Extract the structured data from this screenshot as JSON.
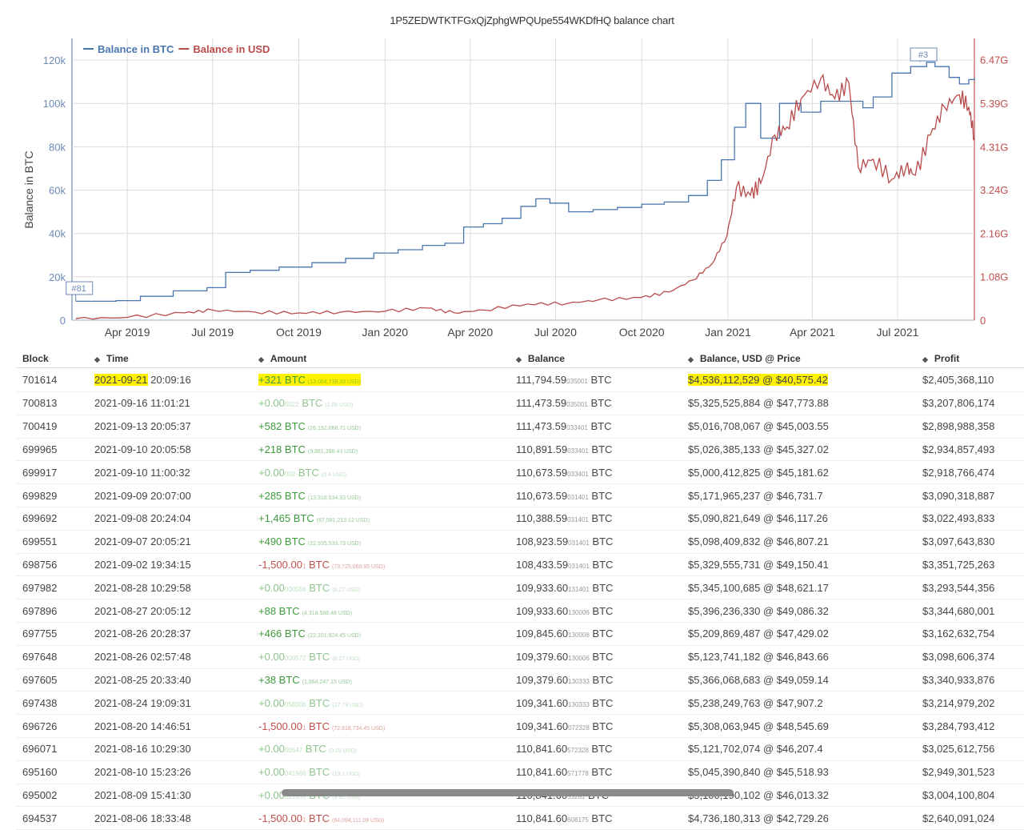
{
  "chart_data": {
    "type": "line",
    "title": "1P5ZEDWTKTFGxQjZphgWPQUpe554WKDfHQ balance chart",
    "ylabel": "Balance in BTC",
    "ylim": [
      0,
      130000
    ],
    "y2lim": [
      0,
      7000000000
    ],
    "yticks": [
      "0",
      "20k",
      "40k",
      "60k",
      "80k",
      "100k",
      "120k"
    ],
    "y2ticks": [
      "0",
      "1.08G",
      "2.16G",
      "3.24G",
      "4.31G",
      "5.39G",
      "6.47G"
    ],
    "xticks": [
      "Apr 2019",
      "Jul 2019",
      "Oct 2019",
      "Jan 2020",
      "Apr 2020",
      "Jul 2020",
      "Oct 2020",
      "Jan 2021",
      "Apr 2021",
      "Jul 2021"
    ],
    "xrange": [
      "2019-02-01",
      "2021-09-21"
    ],
    "legend_position": "top-left",
    "grid": true,
    "series": [
      {
        "name": "Balance in BTC",
        "color": "#4a76b0",
        "axis": "left",
        "points": [
          [
            "2019-02-05",
            8700
          ],
          [
            "2019-03-20",
            9000
          ],
          [
            "2019-04-15",
            11000
          ],
          [
            "2019-05-20",
            13500
          ],
          [
            "2019-06-25",
            15000
          ],
          [
            "2019-07-15",
            22000
          ],
          [
            "2019-08-10",
            23000
          ],
          [
            "2019-09-10",
            24500
          ],
          [
            "2019-10-15",
            26500
          ],
          [
            "2019-11-20",
            28500
          ],
          [
            "2019-12-20",
            31000
          ],
          [
            "2020-01-15",
            32500
          ],
          [
            "2020-02-10",
            34500
          ],
          [
            "2020-03-05",
            35500
          ],
          [
            "2020-03-25",
            43000
          ],
          [
            "2020-04-15",
            44500
          ],
          [
            "2020-05-05",
            47000
          ],
          [
            "2020-05-25",
            52500
          ],
          [
            "2020-06-10",
            56000
          ],
          [
            "2020-06-25",
            54000
          ],
          [
            "2020-07-15",
            50000
          ],
          [
            "2020-08-10",
            51000
          ],
          [
            "2020-09-05",
            52000
          ],
          [
            "2020-10-01",
            53500
          ],
          [
            "2020-10-25",
            54500
          ],
          [
            "2020-11-20",
            57500
          ],
          [
            "2020-12-10",
            64500
          ],
          [
            "2020-12-25",
            74000
          ],
          [
            "2021-01-08",
            89000
          ],
          [
            "2021-01-20",
            100000
          ],
          [
            "2021-02-05",
            84000
          ],
          [
            "2021-02-25",
            100000
          ],
          [
            "2021-03-20",
            96000
          ],
          [
            "2021-04-10",
            101000
          ],
          [
            "2021-05-10",
            101000
          ],
          [
            "2021-05-25",
            98000
          ],
          [
            "2021-06-05",
            103000
          ],
          [
            "2021-06-25",
            114000
          ],
          [
            "2021-07-15",
            117000
          ],
          [
            "2021-08-01",
            119000
          ],
          [
            "2021-08-10",
            117000
          ],
          [
            "2021-08-25",
            112000
          ],
          [
            "2021-09-05",
            109000
          ],
          [
            "2021-09-15",
            111000
          ],
          [
            "2021-09-21",
            111795
          ]
        ]
      },
      {
        "name": "Balance in USD",
        "color": "#b84b4b",
        "axis": "right",
        "points": [
          [
            "2019-02-05",
            35000000
          ],
          [
            "2019-04-01",
            70000000
          ],
          [
            "2019-06-01",
            180000000
          ],
          [
            "2019-07-01",
            250000000
          ],
          [
            "2019-08-15",
            200000000
          ],
          [
            "2019-10-01",
            180000000
          ],
          [
            "2019-11-15",
            200000000
          ],
          [
            "2020-01-01",
            220000000
          ],
          [
            "2020-02-15",
            300000000
          ],
          [
            "2020-03-15",
            180000000
          ],
          [
            "2020-04-15",
            250000000
          ],
          [
            "2020-06-01",
            400000000
          ],
          [
            "2020-07-15",
            420000000
          ],
          [
            "2020-08-15",
            500000000
          ],
          [
            "2020-09-30",
            560000000
          ],
          [
            "2020-10-30",
            700000000
          ],
          [
            "2020-11-25",
            1000000000
          ],
          [
            "2020-12-15",
            1400000000
          ],
          [
            "2020-12-31",
            2100000000
          ],
          [
            "2021-01-10",
            3300000000
          ],
          [
            "2021-01-25",
            3100000000
          ],
          [
            "2021-02-05",
            3400000000
          ],
          [
            "2021-02-20",
            4600000000
          ],
          [
            "2021-03-05",
            4800000000
          ],
          [
            "2021-03-20",
            5500000000
          ],
          [
            "2021-04-10",
            6000000000
          ],
          [
            "2021-04-25",
            5500000000
          ],
          [
            "2021-05-10",
            5900000000
          ],
          [
            "2021-05-20",
            3800000000
          ],
          [
            "2021-06-05",
            4000000000
          ],
          [
            "2021-06-25",
            3500000000
          ],
          [
            "2021-07-10",
            3800000000
          ],
          [
            "2021-07-20",
            3600000000
          ],
          [
            "2021-08-05",
            4600000000
          ],
          [
            "2021-08-20",
            5300000000
          ],
          [
            "2021-09-05",
            5600000000
          ],
          [
            "2021-09-15",
            5300000000
          ],
          [
            "2021-09-21",
            4536112529
          ]
        ]
      }
    ],
    "annotations": [
      {
        "text": "#81",
        "date": "2019-02-05"
      },
      {
        "text": "#3",
        "date": "2021-07-25"
      }
    ],
    "table": {
      "columns": [
        "Block",
        "Time",
        "Amount",
        "Balance",
        "Balance, USD @ Price",
        "Profit"
      ],
      "rows": [
        [
          "701614",
          "2021-09-21 20:09:16",
          "+321 BTC",
          "(13,004,739.33 USD)",
          "111,794.59",
          "035001",
          "$4,536,112,529 @ $40,575.42",
          "$2,405,368,110"
        ],
        [
          "700813",
          "2021-09-16 11:01:21",
          "+0.00",
          "0022",
          "(1.05 USD)",
          "111,473.59",
          "035001",
          "$5,325,525,884 @ $47,773.88",
          "$3,207,806,174"
        ],
        [
          "700419",
          "2021-09-13 20:05:37",
          "+582 BTC",
          "(26,192,068.71 USD)",
          "111,473.59",
          "033401",
          "$5,016,708,067 @ $45,003.55",
          "$2,898,988,358"
        ],
        [
          "699965",
          "2021-09-10 20:05:58",
          "+218 BTC",
          "(9,881,298.43 USD)",
          "110,891.59",
          "033401",
          "$5,026,385,133 @ $45,327.02",
          "$2,934,857,493"
        ],
        [
          "699917",
          "2021-09-10 11:00:32",
          "+0.00",
          "002",
          "(0.4 USD)",
          "110,673.59",
          "033401",
          "$5,000,412,825 @ $45,181.62",
          "$2,918,766,474"
        ],
        [
          "699829",
          "2021-09-09 20:07:00",
          "+285 BTC",
          "(13,318,534.33 USD)",
          "110,673.59",
          "031401",
          "$5,171,965,237 @ $46,731.7",
          "$3,090,318,887"
        ],
        [
          "699692",
          "2021-09-08 20:24:04",
          "+1,465 BTC",
          "(67,581,213.12 USD)",
          "110,388.59",
          "031401",
          "$5,090,821,649 @ $46,117.26",
          "$3,022,493,833"
        ],
        [
          "699551",
          "2021-09-07 20:05:21",
          "+490 BTC",
          "(22,935,533.73 USD)",
          "108,923.59",
          "031401",
          "$5,098,409,832 @ $46,807.21",
          "$3,097,643,830"
        ],
        [
          "698756",
          "2021-09-02 19:34:15",
          "-1,500.00",
          "1",
          "(73,725,060.95 USD)",
          "108,433.59",
          "031401",
          "$5,329,555,731 @ $49,150.41",
          "$3,351,725,263"
        ],
        [
          "697982",
          "2021-08-28 10:29:58",
          "+0.00",
          "000556",
          "(0.27 USD)",
          "109,933.60",
          "131401",
          "$5,345,100,685 @ $48,621.17",
          "$3,293,544,356"
        ],
        [
          "697896",
          "2021-08-27 20:05:12",
          "+88 BTC",
          "(4,318,598.48 USD)",
          "109,933.60",
          "130006",
          "$5,396,236,330 @ $49,086.32",
          "$3,344,680,001"
        ],
        [
          "697755",
          "2021-08-26 20:28:37",
          "+466 BTC",
          "(22,101,924.45 USD)",
          "109,845.60",
          "130006",
          "$5,209,869,487 @ $47,429.02",
          "$3,162,632,754"
        ],
        [
          "697648",
          "2021-08-26 02:57:48",
          "+0.00",
          "000572",
          "(0.27 USD)",
          "109,379.60",
          "130006",
          "$5,123,741,182 @ $46,843.66",
          "$3,098,606,374"
        ],
        [
          "697605",
          "2021-08-25 20:33:40",
          "+38 BTC",
          "(1,864,247.15 USD)",
          "109,379.60",
          "130333",
          "$5,366,068,683 @ $49,059.14",
          "$3,340,933,876"
        ],
        [
          "697438",
          "2021-08-24 19:09:31",
          "+0.00",
          "058006",
          "(27.79 USD)",
          "109,341.60",
          "130333",
          "$5,238,249,763 @ $47,907.2",
          "$3,214,979,202"
        ],
        [
          "696726",
          "2021-08-20 14:46:51",
          "-1,500.00",
          "1",
          "(72,818,734.45 USD)",
          "109,341.60",
          "072328",
          "$5,308,063,945 @ $48,545.69",
          "$3,284,793,412"
        ],
        [
          "696071",
          "2021-08-16 10:29:30",
          "+0.00",
          "00547",
          "(0.25 USD)",
          "110,841.60",
          "572328",
          "$5,121,702,074 @ $46,207.4",
          "$3,025,612,756"
        ],
        [
          "695160",
          "2021-08-10 15:23:26",
          "+0.00",
          "041966",
          "(19.1 USD)",
          "110,841.60",
          "571778",
          "$5,045,390,840 @ $45,518.93",
          "$2,949,301,523"
        ],
        [
          "695002",
          "2021-08-09 15:41:30",
          "+0.00",
          "021535",
          "(9.95 USD)",
          "110,841.60",
          "53281",
          "$5,100,190,102 @ $46,013.32",
          "$3,004,100,804"
        ],
        [
          "694537",
          "2021-08-06 18:33:48",
          "-1,500.00",
          "1",
          "(64,094,111.09 USD)",
          "110,841.60",
          "608175",
          "$4,736,180,313 @ $42,729.26",
          "$2,640,091,024"
        ]
      ]
    }
  },
  "table_view": {
    "headers": [
      "Block",
      "Time",
      "Amount",
      "Balance",
      "Balance, USD @ Price",
      "Profit"
    ],
    "highlight_color": "#fff200",
    "btc_unit": "BTC"
  }
}
